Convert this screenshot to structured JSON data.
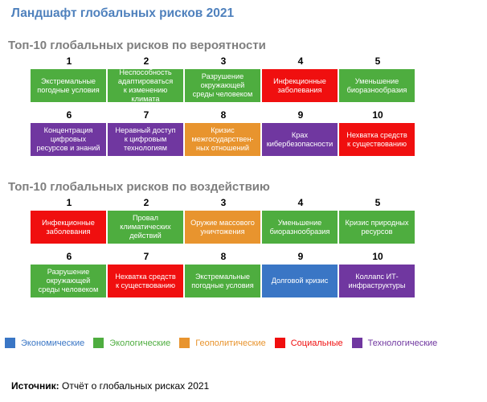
{
  "title": "Ландшафт глобальных рисков 2021",
  "colors": {
    "economic": "#3a76c5",
    "ecological": "#4ead3f",
    "geopolitical": "#e8942e",
    "social": "#f00f0f",
    "technological": "#7037a0"
  },
  "likelihood": {
    "heading": "Топ-10 глобальных рисков по вероятности",
    "items": [
      {
        "rank": "1",
        "label": "Экстремальные\nпогодные условия",
        "category": "ecological"
      },
      {
        "rank": "2",
        "label": "Неспособность\nадаптироваться\nк изменению климата",
        "category": "ecological"
      },
      {
        "rank": "3",
        "label": "Разрушение\nокружающей\nсреды человеком",
        "category": "ecological"
      },
      {
        "rank": "4",
        "label": "Инфекционные\nзаболевания",
        "category": "social"
      },
      {
        "rank": "5",
        "label": "Уменьшение\nбиоразнообразия",
        "category": "ecological"
      },
      {
        "rank": "6",
        "label": "Концентрация\nцифровых\nресурсов и знаний",
        "category": "technological"
      },
      {
        "rank": "7",
        "label": "Неравный доступ\nк цифровым\nтехнологиям",
        "category": "technological"
      },
      {
        "rank": "8",
        "label": "Кризис\nмежгосударствен-\nных отношений",
        "category": "geopolitical"
      },
      {
        "rank": "9",
        "label": "Крах\nкибербезопасности",
        "category": "technological"
      },
      {
        "rank": "10",
        "label": "Нехватка средств\nк существованию",
        "category": "social"
      }
    ]
  },
  "impact": {
    "heading": "Топ-10 глобальных рисков по воздействию",
    "items": [
      {
        "rank": "1",
        "label": "Инфекционные\nзаболевания",
        "category": "social"
      },
      {
        "rank": "2",
        "label": "Провал\nклиматических\nдействий",
        "category": "ecological"
      },
      {
        "rank": "3",
        "label": "Оружие массового\nуничтожения",
        "category": "geopolitical"
      },
      {
        "rank": "4",
        "label": "Уменьшение\nбиоразнообразия",
        "category": "ecological"
      },
      {
        "rank": "5",
        "label": "Кризис природных\nресурсов",
        "category": "ecological"
      },
      {
        "rank": "6",
        "label": "Разрушение\nокружающей\nсреды человеком",
        "category": "ecological"
      },
      {
        "rank": "7",
        "label": "Нехватка средств\nк существованию",
        "category": "social"
      },
      {
        "rank": "8",
        "label": "Экстремальные\nпогодные условия",
        "category": "ecological"
      },
      {
        "rank": "9",
        "label": "Долговой кризис",
        "category": "economic"
      },
      {
        "rank": "10",
        "label": "Коллапс ИТ-\nинфраструктуры",
        "category": "technological"
      }
    ]
  },
  "legend": [
    {
      "label": "Экономические",
      "category": "economic"
    },
    {
      "label": "Экологические",
      "category": "ecological"
    },
    {
      "label": "Геополитические",
      "category": "geopolitical"
    },
    {
      "label": "Социальные",
      "category": "social"
    },
    {
      "label": "Технологические",
      "category": "technological"
    }
  ],
  "source": {
    "prefix": "Источник:",
    "text": " Отчёт о глобальных рисках 2021"
  }
}
